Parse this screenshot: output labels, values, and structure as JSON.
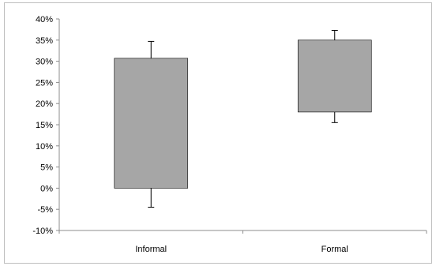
{
  "chart_data": {
    "type": "bar",
    "subtype": "floating-range-with-error-bars",
    "categories": [
      "Informal",
      "Formal"
    ],
    "series": [
      {
        "low": [
          0,
          18
        ],
        "high": [
          30.7,
          35
        ],
        "error_low": [
          -4.5,
          15.5
        ],
        "error_high": [
          34.7,
          37.3
        ]
      }
    ],
    "y_unit": "%",
    "ylim": [
      -10,
      40
    ],
    "ytick_labels": [
      "40%",
      "35%",
      "30%",
      "25%",
      "20%",
      "15%",
      "10%",
      "5%",
      "0%",
      "-5%",
      "-10%"
    ],
    "ytick_values": [
      40,
      35,
      30,
      25,
      20,
      15,
      10,
      5,
      0,
      -5,
      -10
    ],
    "grid": false,
    "legend": "none",
    "title": "",
    "xlabel": "",
    "ylabel": "",
    "colors": {
      "bar": "#a6a6a6",
      "axis": "#8c8c8c",
      "error": "#000000"
    }
  }
}
